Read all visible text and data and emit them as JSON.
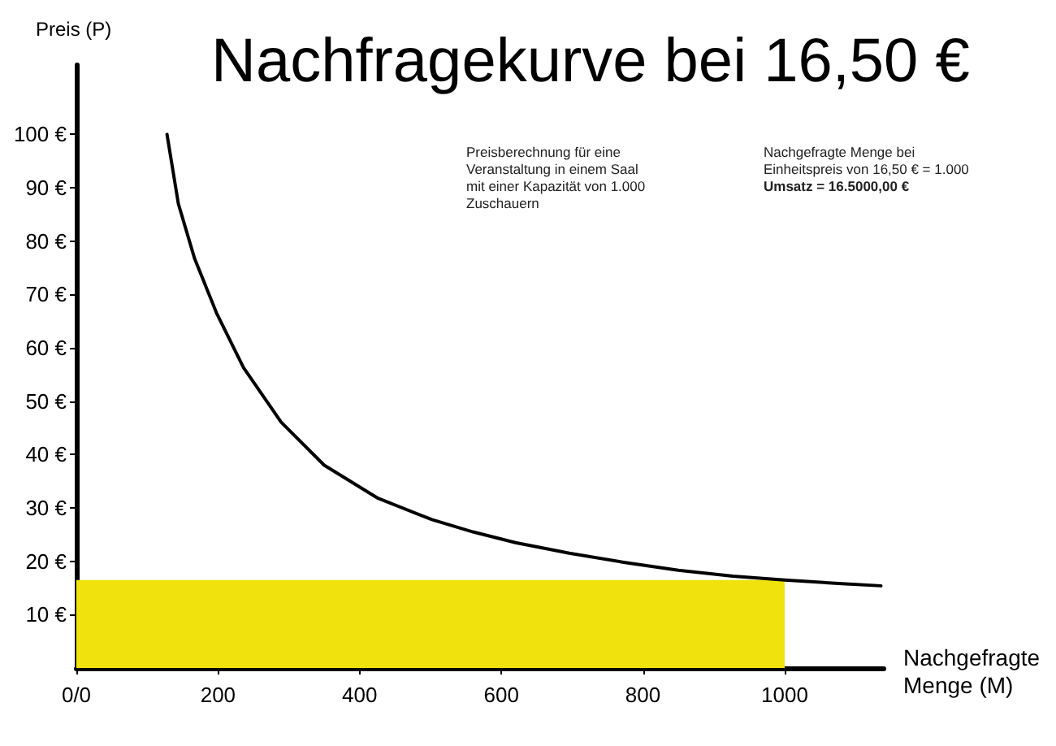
{
  "chart_data": {
    "type": "line",
    "title": "Nachfragekurve bei 16,50 €",
    "xlabel": "Nachgefragte\nMenge (M)",
    "ylabel": "Preis (P)",
    "annotations": [
      "Preisberechnung für eine\nVeranstaltung in einem Saal\nmit einer Kapazität von 1.000\nZuschauern",
      "Nachgefragte Menge bei\nEinheitspreis von 16,50 € = 1.000",
      "Umsatz = 16.5000,00 €"
    ],
    "xlim": [
      0,
      1140
    ],
    "xticks": [
      {
        "value": 0,
        "label": "0/0"
      },
      200,
      400,
      600,
      800,
      1000
    ],
    "ylim": [
      0,
      113
    ],
    "yticks": [
      {
        "value": 10,
        "label": "10 €"
      },
      {
        "value": 20,
        "label": "20 €"
      },
      {
        "value": 30,
        "label": "30 €"
      },
      {
        "value": 40,
        "label": "40 €"
      },
      {
        "value": 50,
        "label": "50 €"
      },
      {
        "value": 60,
        "label": "60 €"
      },
      {
        "value": 70,
        "label": "70 €"
      },
      {
        "value": 80,
        "label": "80 €"
      },
      {
        "value": 90,
        "label": "90 €"
      },
      {
        "value": 100,
        "label": "100 €"
      }
    ],
    "grid": false,
    "marker": "none",
    "line_style": "solid",
    "series": [
      {
        "type": "area",
        "color": "#f0e20c",
        "x": [
          0,
          1000
        ],
        "values": [
          16.5,
          16.5
        ]
      },
      {
        "color": "#000000",
        "x": [
          128,
          144,
          167,
          198,
          236,
          289,
          350,
          426,
          502,
          560,
          620,
          696,
          773,
          850,
          927,
          1000,
          1081,
          1136
        ],
        "values": [
          100,
          87,
          76.7,
          66.5,
          56.3,
          46.1,
          38,
          31.8,
          27.8,
          25.5,
          23.5,
          21.5,
          19.8,
          18.3,
          17.2,
          16.5,
          15.8,
          15.4
        ]
      }
    ]
  }
}
